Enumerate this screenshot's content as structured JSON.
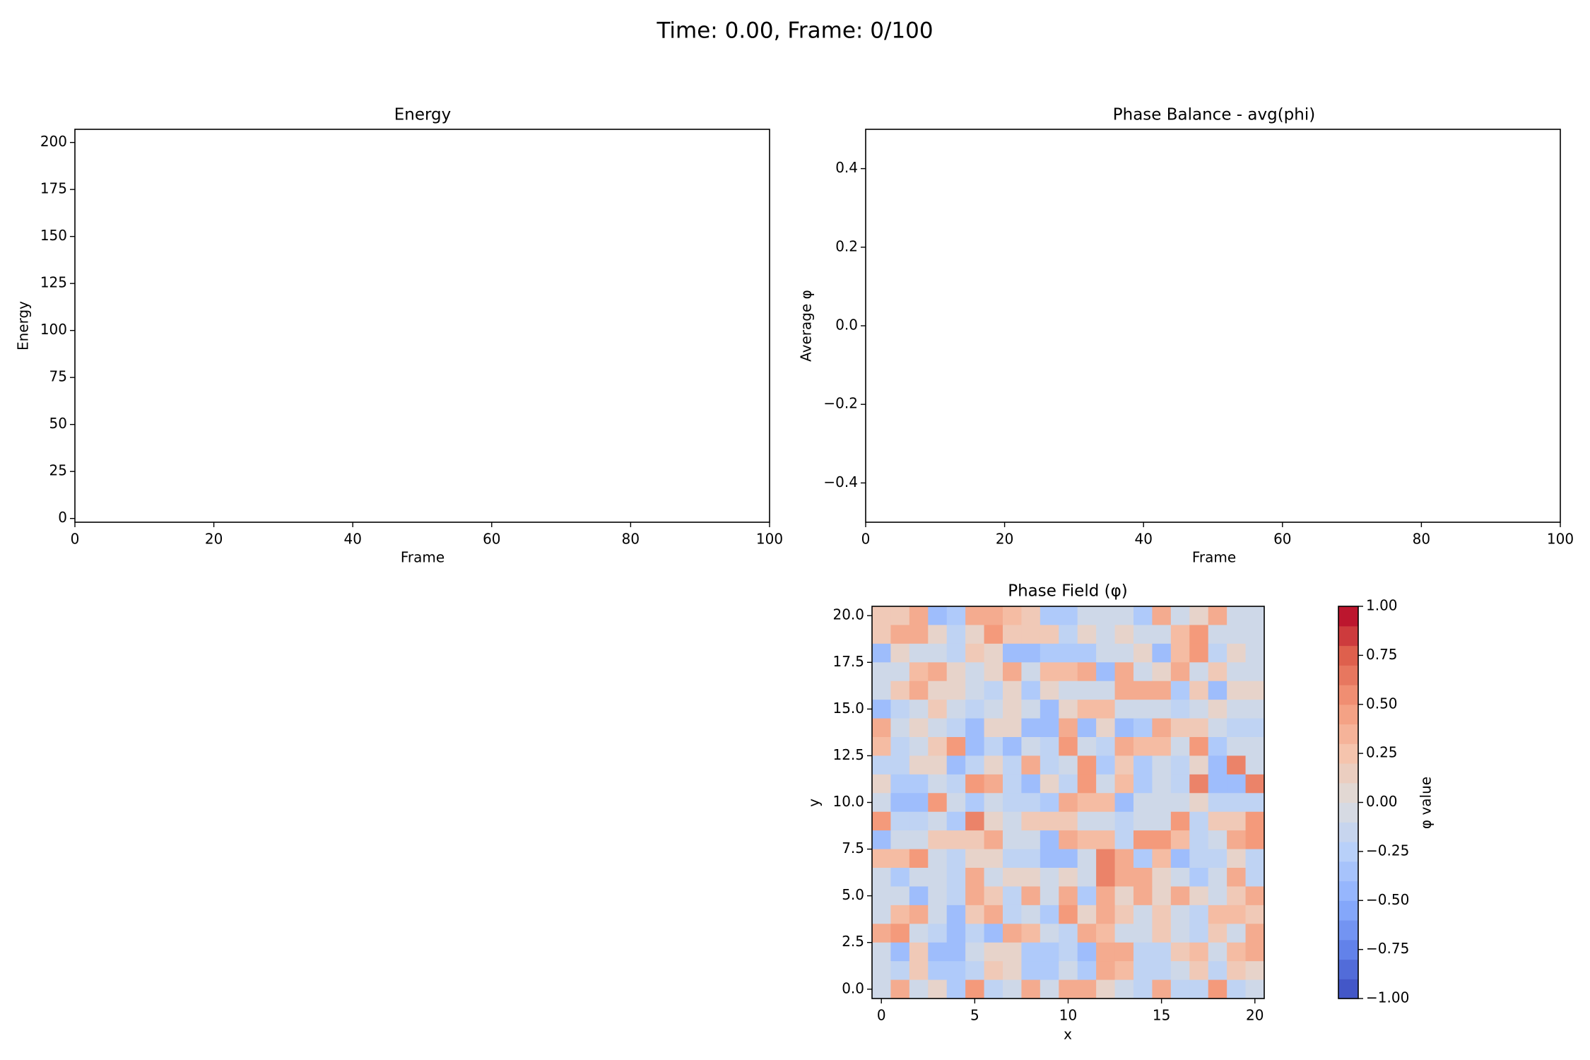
{
  "figure": {
    "suptitle": "Time: 0.00, Frame: 0/100"
  },
  "chart_data": [
    {
      "id": "energy",
      "type": "line",
      "title": "Energy",
      "xlabel": "Frame",
      "ylabel": "Energy",
      "xlim": [
        0,
        100
      ],
      "ylim": [
        -2,
        207
      ],
      "xticks": [
        0,
        20,
        40,
        60,
        80,
        100
      ],
      "yticks": [
        0,
        25,
        50,
        75,
        100,
        125,
        150,
        175,
        200
      ],
      "series": [
        {
          "x": [],
          "y": []
        }
      ]
    },
    {
      "id": "phase-balance",
      "type": "line",
      "title": "Phase Balance - avg(phi)",
      "xlabel": "Frame",
      "ylabel": "Average φ",
      "xlim": [
        0,
        100
      ],
      "ylim": [
        -0.5,
        0.5
      ],
      "xticks": [
        0,
        20,
        40,
        60,
        80,
        100
      ],
      "yticks": [
        -0.4,
        -0.2,
        0.0,
        0.2,
        0.4
      ],
      "ytick_labels": [
        "−0.4",
        "−0.2",
        "0.0",
        "0.2",
        "0.4"
      ],
      "series": [
        {
          "x": [],
          "y": []
        }
      ]
    },
    {
      "id": "phase-field",
      "type": "heatmap",
      "title": "Phase Field (φ)",
      "xlabel": "x",
      "ylabel": "y",
      "xlim": [
        -0.5,
        20.5
      ],
      "ylim": [
        -0.5,
        20.5
      ],
      "xticks": [
        0,
        5,
        10,
        15,
        20
      ],
      "yticks": [
        0.0,
        2.5,
        5.0,
        7.5,
        10.0,
        12.5,
        15.0,
        17.5,
        20.0
      ],
      "ytick_labels": [
        "0.0",
        "2.5",
        "5.0",
        "7.5",
        "10.0",
        "12.5",
        "15.0",
        "17.5",
        "20.0"
      ],
      "colormap": "coolwarm",
      "vmin": -1.0,
      "vmax": 1.0,
      "colorbar": {
        "label": "φ value",
        "ticks": [
          -1.0,
          -0.75,
          -0.5,
          -0.25,
          0.0,
          0.25,
          0.5,
          0.75,
          1.0
        ],
        "tick_labels": [
          "−1.00",
          "−0.75",
          "−0.50",
          "−0.25",
          "0.00",
          "0.25",
          "0.50",
          "0.75",
          "1.00"
        ]
      },
      "grid_rows_top_to_bottom": [
        [
          0.2,
          0.2,
          0.4,
          -0.4,
          -0.3,
          0.4,
          0.4,
          0.3,
          0.2,
          -0.3,
          -0.3,
          -0.1,
          -0.1,
          -0.1,
          -0.3,
          0.4,
          -0.1,
          0.1,
          0.4,
          -0.1,
          -0.1
        ],
        [
          0.2,
          0.4,
          0.4,
          0.1,
          -0.2,
          0.1,
          0.5,
          0.2,
          0.2,
          0.2,
          -0.2,
          0.1,
          -0.1,
          0.1,
          -0.1,
          -0.1,
          0.3,
          0.5,
          -0.1,
          -0.1,
          -0.1
        ],
        [
          -0.4,
          0.1,
          -0.1,
          -0.1,
          -0.2,
          0.2,
          0.1,
          -0.4,
          -0.4,
          -0.3,
          -0.3,
          -0.3,
          -0.1,
          -0.1,
          0.1,
          -0.4,
          0.3,
          0.5,
          -0.2,
          0.1,
          -0.1
        ],
        [
          -0.1,
          -0.1,
          0.3,
          0.4,
          0.1,
          -0.1,
          0.1,
          0.4,
          -0.1,
          0.3,
          0.3,
          0.4,
          -0.4,
          0.4,
          -0.1,
          0.1,
          0.4,
          -0.1,
          0.2,
          -0.1,
          -0.1
        ],
        [
          -0.1,
          0.2,
          0.4,
          0.1,
          0.1,
          -0.1,
          -0.2,
          0.1,
          -0.3,
          0.1,
          -0.1,
          -0.1,
          -0.1,
          0.4,
          0.4,
          0.4,
          -0.3,
          0.2,
          -0.4,
          0.1,
          0.1
        ],
        [
          -0.4,
          -0.2,
          -0.1,
          0.2,
          -0.1,
          -0.2,
          -0.1,
          0.1,
          -0.1,
          -0.4,
          0.1,
          0.3,
          0.3,
          -0.1,
          -0.1,
          -0.1,
          -0.2,
          -0.1,
          0.1,
          -0.1,
          -0.1
        ],
        [
          0.4,
          -0.1,
          0.1,
          -0.1,
          -0.2,
          -0.4,
          0.1,
          0.1,
          -0.4,
          -0.4,
          0.4,
          -0.4,
          0.1,
          -0.4,
          -0.3,
          0.4,
          0.2,
          0.2,
          -0.1,
          -0.2,
          -0.2
        ],
        [
          0.3,
          -0.2,
          -0.1,
          0.2,
          0.5,
          -0.4,
          -0.2,
          -0.4,
          -0.1,
          -0.2,
          0.5,
          -0.1,
          -0.2,
          0.4,
          0.3,
          0.3,
          -0.1,
          0.5,
          -0.3,
          -0.1,
          -0.1
        ],
        [
          -0.2,
          -0.2,
          0.1,
          0.1,
          -0.4,
          -0.2,
          0.1,
          -0.2,
          0.4,
          -0.2,
          -0.1,
          0.5,
          -0.3,
          0.2,
          -0.3,
          -0.1,
          -0.2,
          0.1,
          -0.4,
          0.6,
          -0.1
        ],
        [
          0.1,
          -0.3,
          -0.3,
          -0.1,
          -0.2,
          0.5,
          0.4,
          -0.2,
          -0.4,
          0.1,
          -0.2,
          0.5,
          -0.1,
          0.3,
          -0.3,
          -0.1,
          -0.2,
          0.6,
          -0.4,
          -0.4,
          0.6
        ],
        [
          -0.1,
          -0.4,
          -0.4,
          0.5,
          -0.1,
          -0.3,
          -0.1,
          -0.2,
          -0.2,
          -0.3,
          0.4,
          0.3,
          0.3,
          -0.4,
          -0.1,
          -0.1,
          -0.1,
          0.1,
          -0.2,
          -0.2,
          -0.2
        ],
        [
          0.5,
          -0.2,
          -0.2,
          -0.1,
          -0.3,
          0.6,
          0.1,
          -0.1,
          0.2,
          0.2,
          0.2,
          -0.1,
          -0.1,
          -0.2,
          -0.1,
          -0.1,
          0.5,
          -0.2,
          0.2,
          0.2,
          0.5
        ],
        [
          -0.4,
          -0.1,
          -0.1,
          0.2,
          0.2,
          0.2,
          0.4,
          -0.1,
          -0.1,
          -0.4,
          0.4,
          0.3,
          0.3,
          -0.2,
          0.5,
          0.5,
          0.3,
          -0.2,
          -0.1,
          0.4,
          0.5
        ],
        [
          0.3,
          0.3,
          0.5,
          -0.1,
          -0.2,
          0.1,
          0.1,
          -0.2,
          -0.2,
          -0.4,
          -0.4,
          -0.1,
          0.6,
          0.4,
          -0.3,
          0.3,
          -0.4,
          -0.2,
          -0.2,
          0.1,
          -0.2
        ],
        [
          -0.1,
          -0.3,
          -0.1,
          -0.1,
          -0.2,
          0.4,
          -0.1,
          0.1,
          0.1,
          -0.1,
          0.1,
          -0.1,
          0.6,
          0.4,
          0.4,
          0.1,
          -0.1,
          -0.3,
          -0.1,
          0.4,
          -0.2
        ],
        [
          -0.1,
          -0.1,
          -0.4,
          -0.1,
          -0.2,
          0.4,
          0.2,
          -0.2,
          0.4,
          -0.1,
          0.4,
          -0.3,
          0.4,
          0.1,
          0.4,
          0.1,
          0.4,
          0.1,
          -0.1,
          0.2,
          0.4
        ],
        [
          -0.1,
          0.3,
          0.4,
          -0.1,
          -0.4,
          0.2,
          0.4,
          -0.2,
          -0.1,
          -0.3,
          0.5,
          0.1,
          0.4,
          0.2,
          -0.1,
          0.2,
          -0.1,
          -0.2,
          0.3,
          0.3,
          0.2
        ],
        [
          0.4,
          0.5,
          -0.1,
          -0.2,
          -0.4,
          -0.2,
          -0.4,
          0.4,
          0.3,
          -0.1,
          -0.2,
          0.4,
          0.3,
          -0.1,
          -0.1,
          0.2,
          -0.1,
          -0.2,
          0.2,
          -0.1,
          0.4
        ],
        [
          -0.1,
          -0.4,
          0.2,
          -0.4,
          -0.4,
          -0.1,
          0.1,
          0.1,
          -0.3,
          -0.3,
          -0.2,
          -0.4,
          0.4,
          0.4,
          -0.2,
          -0.2,
          0.2,
          0.3,
          -0.1,
          0.3,
          0.4
        ],
        [
          -0.1,
          -0.2,
          0.2,
          -0.3,
          -0.3,
          -0.2,
          0.2,
          0.1,
          -0.3,
          -0.3,
          -0.1,
          -0.3,
          0.4,
          0.3,
          -0.2,
          -0.2,
          -0.1,
          0.2,
          -0.2,
          0.2,
          0.1
        ],
        [
          -0.1,
          0.4,
          -0.1,
          0.1,
          -0.3,
          0.5,
          -0.2,
          -0.1,
          0.4,
          -0.1,
          0.4,
          0.4,
          0.1,
          -0.1,
          -0.2,
          0.4,
          -0.2,
          -0.2,
          0.5,
          -0.2,
          -0.1
        ]
      ]
    }
  ]
}
